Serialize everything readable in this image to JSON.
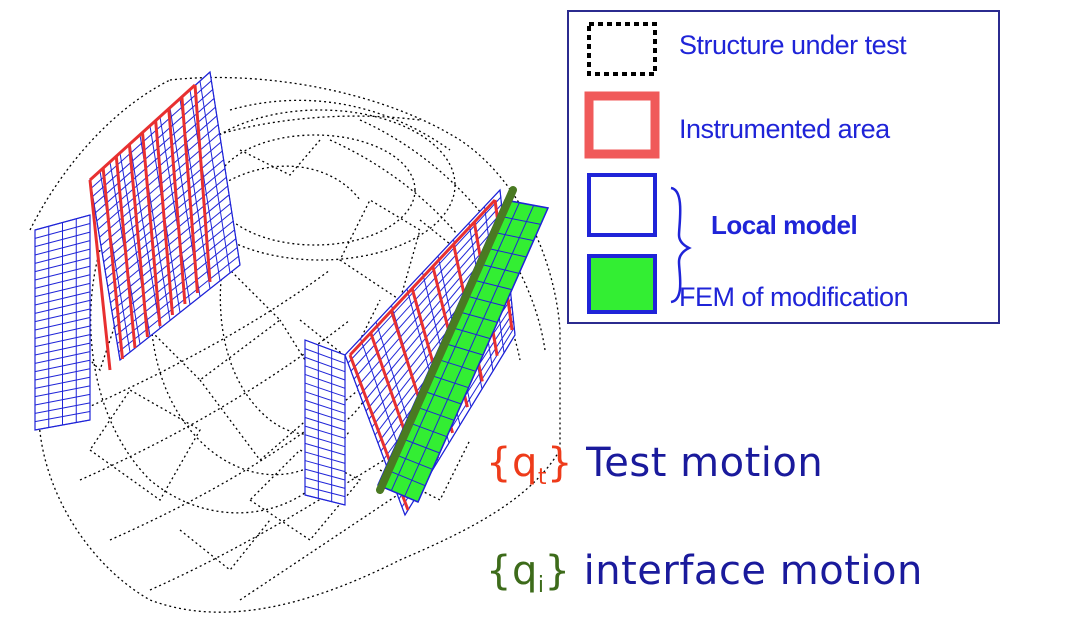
{
  "legend": {
    "items": [
      {
        "label": "Structure under test"
      },
      {
        "label": "Instrumented area"
      },
      {
        "label": "Local model"
      },
      {
        "label": "FEM of modification"
      }
    ]
  },
  "annotations": {
    "test_motion": {
      "symbol": "q",
      "subscript": "t",
      "text": "Test motion"
    },
    "interface_motion": {
      "symbol": "q",
      "subscript": "i",
      "text": "interface motion"
    }
  },
  "colors": {
    "structure": "#000000",
    "instrumented": "#e83030",
    "local_model": "#1f24d8",
    "fem_fill": "#33ee33",
    "fem_border": "#1f24d8",
    "beam": "#4a7a22",
    "test_motion_brace": "#ee3b1a",
    "interface_motion_brace": "#3d6b1a",
    "motion_text": "#1a1a9c",
    "legend_border": "#2b2b8f"
  }
}
